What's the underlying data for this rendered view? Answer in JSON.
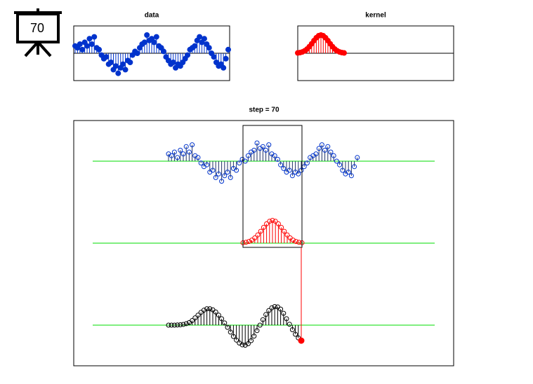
{
  "icon_label": "70",
  "chart_data": [
    {
      "type": "stem",
      "title": "data",
      "color": "#0033cc",
      "ylim": [
        -1.5,
        1.5
      ],
      "values": [
        0.4,
        0.3,
        0.5,
        0.2,
        0.6,
        0.4,
        0.8,
        0.5,
        0.9,
        0.3,
        0.2,
        -0.1,
        -0.3,
        -0.2,
        -0.6,
        -0.5,
        -0.9,
        -0.7,
        -1.1,
        -0.8,
        -0.6,
        -0.9,
        -0.4,
        -0.5,
        -0.1,
        0.1,
        0.0,
        0.3,
        0.5,
        0.6,
        1.0,
        0.7,
        0.8,
        0.6,
        0.9,
        0.4,
        0.3,
        0.1,
        -0.2,
        -0.4,
        -0.6,
        -0.5,
        -0.8,
        -0.6,
        -0.7,
        -0.5,
        -0.3,
        -0.1,
        0.2,
        0.3,
        0.4,
        0.7,
        0.9,
        0.6,
        0.8,
        0.5,
        0.3,
        0.0,
        -0.2,
        -0.5,
        -0.7,
        -0.6,
        -0.8,
        -0.3,
        0.2
      ]
    },
    {
      "type": "stem",
      "title": "kernel",
      "color": "#ff0000",
      "ylim": [
        -1.5,
        1.5
      ],
      "values": [
        0.017,
        0.037,
        0.073,
        0.135,
        0.23,
        0.36,
        0.521,
        0.693,
        0.849,
        0.96,
        1,
        0.96,
        0.849,
        0.693,
        0.521,
        0.36,
        0.23,
        0.135,
        0.073,
        0.037,
        0.017
      ]
    },
    {
      "type": "convolution",
      "title": "step = 70",
      "color": "#000000",
      "baseline_color": "#00dd00",
      "values": [
        0,
        0,
        0,
        0.01,
        0.02,
        0.04,
        0.08,
        0.14,
        0.25,
        0.4,
        0.55,
        0.7,
        0.82,
        0.9,
        0.9,
        0.84,
        0.72,
        0.55,
        0.35,
        0.12,
        -0.12,
        -0.38,
        -0.62,
        -0.82,
        -0.98,
        -1.08,
        -1.1,
        -1.02,
        -0.85,
        -0.6,
        -0.3,
        0.0,
        0.3,
        0.58,
        0.8,
        0.95,
        1.02,
        1.0,
        0.88,
        0.65,
        0.35,
        0.05,
        -0.25,
        -0.5,
        -0.7,
        -0.85
      ]
    }
  ]
}
